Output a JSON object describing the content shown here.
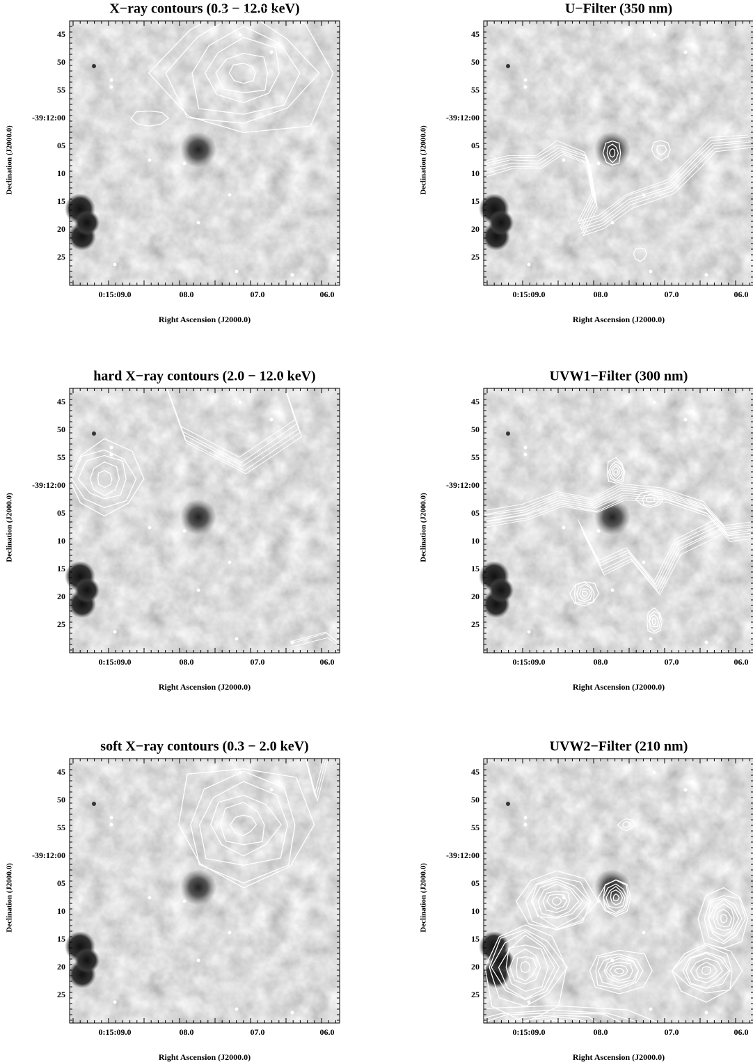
{
  "panels": [
    {
      "title": "X−ray contours (0.3 − 12.0 keV)",
      "xlabel": "Right Ascension (J2000.0)",
      "ylabel": "Declination (J2000.0)",
      "xticks": [
        "0:15:09.0",
        "08.0",
        "07.0",
        "06.0"
      ],
      "yticks": [
        "45",
        "50",
        "55",
        "-39:12:00",
        "05",
        "10",
        "15",
        "20",
        "25"
      ]
    },
    {
      "title": "U−Filter (350 nm)",
      "xlabel": "Right Ascension (J2000.0)",
      "ylabel": "Declination (J2000.0)",
      "xticks": [
        "0:15:09.0",
        "08.0",
        "07.0",
        "06.0"
      ],
      "yticks": [
        "45",
        "50",
        "55",
        "-39:12:00",
        "05",
        "10",
        "15",
        "20",
        "25"
      ]
    },
    {
      "title": "hard X−ray contours (2.0 − 12.0 keV)",
      "xlabel": "Right Ascension (J2000.0)",
      "ylabel": "Declination (J2000.0)",
      "xticks": [
        "0:15:09.0",
        "08.0",
        "07.0",
        "06.0"
      ],
      "yticks": [
        "45",
        "50",
        "55",
        "-39:12:00",
        "05",
        "10",
        "15",
        "20",
        "25"
      ]
    },
    {
      "title": "UVW1−Filter (300 nm)",
      "xlabel": "Right Ascension (J2000.0)",
      "ylabel": "Declination (J2000.0)",
      "xticks": [
        "0:15:09.0",
        "08.0",
        "07.0",
        "06.0"
      ],
      "yticks": [
        "45",
        "50",
        "55",
        "-39:12:00",
        "05",
        "10",
        "15",
        "20",
        "25"
      ]
    },
    {
      "title": "soft X−ray contours (0.3 − 2.0 keV)",
      "xlabel": "Right Ascension (J2000.0)",
      "ylabel": "Declination (J2000.0)",
      "xticks": [
        "0:15:09.0",
        "08.0",
        "07.0",
        "06.0"
      ],
      "yticks": [
        "45",
        "50",
        "55",
        "-39:12:00",
        "05",
        "10",
        "15",
        "20",
        "25"
      ]
    },
    {
      "title": "UVW2−Filter (210 nm)",
      "xlabel": "Right Ascension (J2000.0)",
      "ylabel": "Declination (J2000.0)",
      "xticks": [
        "0:15:09.0",
        "08.0",
        "07.0",
        "06.0"
      ],
      "yticks": [
        "45",
        "50",
        "55",
        "-39:12:00",
        "05",
        "10",
        "15",
        "20",
        "25"
      ]
    }
  ]
}
